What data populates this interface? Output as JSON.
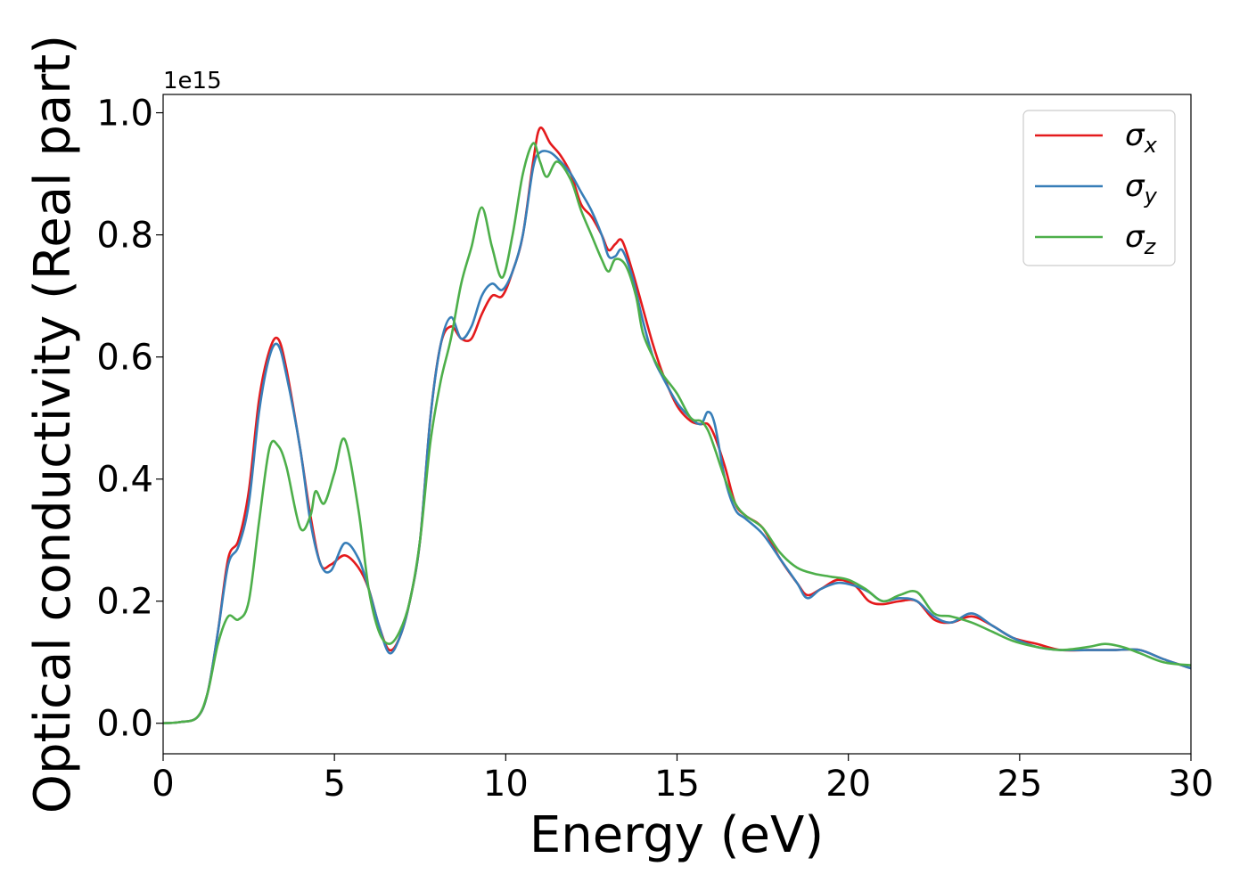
{
  "chart_data": {
    "type": "line",
    "title": "",
    "xlabel": "Energy (eV)",
    "ylabel": "Optical conductivity (Real part)",
    "y_offset_text": "1e15",
    "xlim": [
      0,
      30
    ],
    "ylim": [
      -0.05,
      1.03
    ],
    "y_scale_note": "values in units of 1e15",
    "xticks": [
      0,
      5,
      10,
      15,
      20,
      25,
      30
    ],
    "xtick_labels": [
      "0",
      "5",
      "10",
      "15",
      "20",
      "25",
      "30"
    ],
    "yticks": [
      0.0,
      0.2,
      0.4,
      0.6,
      0.8,
      1.0
    ],
    "ytick_labels": [
      "0.0",
      "0.2",
      "0.4",
      "0.6",
      "0.8",
      "1.0"
    ],
    "grid": false,
    "legend_position": "top-right",
    "series": [
      {
        "name": "σx",
        "symbol": "σ",
        "subscript": "x",
        "color": "#e41a1c",
        "x": [
          0,
          0.5,
          1.0,
          1.3,
          1.6,
          1.9,
          2.2,
          2.5,
          2.8,
          3.1,
          3.35,
          3.6,
          4.0,
          4.3,
          4.6,
          4.9,
          5.3,
          5.7,
          6.0,
          6.3,
          6.6,
          6.9,
          7.2,
          7.5,
          7.8,
          8.1,
          8.4,
          8.7,
          9.0,
          9.3,
          9.6,
          9.9,
          10.2,
          10.5,
          10.8,
          11.0,
          11.3,
          11.6,
          11.9,
          12.2,
          12.5,
          12.8,
          13.0,
          13.2,
          13.4,
          13.7,
          14.0,
          14.3,
          14.6,
          15.0,
          15.4,
          15.7,
          15.9,
          16.1,
          16.4,
          16.7,
          17.0,
          17.5,
          18.0,
          18.5,
          18.8,
          19.2,
          19.7,
          20.2,
          20.6,
          21.0,
          21.5,
          22.0,
          22.5,
          23.0,
          23.6,
          24.2,
          24.8,
          25.5,
          26.2,
          27.0,
          27.8,
          28.5,
          29.2,
          30.0
        ],
        "y": [
          0.0,
          0.002,
          0.01,
          0.05,
          0.15,
          0.27,
          0.3,
          0.38,
          0.53,
          0.61,
          0.63,
          0.58,
          0.45,
          0.34,
          0.26,
          0.26,
          0.275,
          0.255,
          0.22,
          0.16,
          0.12,
          0.14,
          0.2,
          0.3,
          0.5,
          0.62,
          0.65,
          0.63,
          0.63,
          0.67,
          0.7,
          0.7,
          0.74,
          0.8,
          0.92,
          0.975,
          0.95,
          0.93,
          0.9,
          0.85,
          0.83,
          0.8,
          0.775,
          0.785,
          0.79,
          0.74,
          0.68,
          0.62,
          0.57,
          0.52,
          0.495,
          0.49,
          0.49,
          0.47,
          0.42,
          0.36,
          0.34,
          0.32,
          0.27,
          0.23,
          0.21,
          0.22,
          0.235,
          0.225,
          0.2,
          0.195,
          0.2,
          0.2,
          0.17,
          0.165,
          0.175,
          0.16,
          0.14,
          0.13,
          0.12,
          0.12,
          0.12,
          0.12,
          0.105,
          0.09
        ]
      },
      {
        "name": "σy",
        "symbol": "σ",
        "subscript": "y",
        "color": "#377eb8",
        "x": [
          0,
          0.5,
          1.0,
          1.3,
          1.6,
          1.9,
          2.2,
          2.5,
          2.8,
          3.1,
          3.35,
          3.6,
          4.0,
          4.3,
          4.6,
          4.9,
          5.3,
          5.7,
          6.0,
          6.3,
          6.6,
          6.9,
          7.2,
          7.5,
          7.8,
          8.1,
          8.4,
          8.7,
          9.0,
          9.3,
          9.6,
          9.9,
          10.2,
          10.5,
          10.8,
          11.0,
          11.3,
          11.6,
          11.9,
          12.2,
          12.5,
          12.8,
          13.0,
          13.2,
          13.4,
          13.7,
          14.0,
          14.3,
          14.6,
          15.0,
          15.4,
          15.7,
          15.9,
          16.1,
          16.4,
          16.7,
          17.0,
          17.5,
          18.0,
          18.5,
          18.8,
          19.2,
          19.7,
          20.2,
          20.6,
          21.0,
          21.5,
          22.0,
          22.5,
          23.0,
          23.6,
          24.2,
          24.8,
          25.5,
          26.2,
          27.0,
          27.8,
          28.5,
          29.2,
          30.0
        ],
        "y": [
          0.0,
          0.002,
          0.01,
          0.05,
          0.15,
          0.26,
          0.29,
          0.36,
          0.51,
          0.6,
          0.62,
          0.57,
          0.45,
          0.33,
          0.26,
          0.25,
          0.295,
          0.27,
          0.22,
          0.16,
          0.115,
          0.14,
          0.2,
          0.3,
          0.5,
          0.62,
          0.665,
          0.63,
          0.65,
          0.7,
          0.72,
          0.71,
          0.74,
          0.8,
          0.91,
          0.935,
          0.935,
          0.92,
          0.9,
          0.87,
          0.84,
          0.8,
          0.765,
          0.765,
          0.775,
          0.73,
          0.66,
          0.6,
          0.565,
          0.525,
          0.5,
          0.49,
          0.51,
          0.49,
          0.4,
          0.35,
          0.335,
          0.31,
          0.27,
          0.23,
          0.205,
          0.22,
          0.23,
          0.225,
          0.215,
          0.2,
          0.205,
          0.2,
          0.175,
          0.165,
          0.18,
          0.16,
          0.14,
          0.125,
          0.12,
          0.12,
          0.12,
          0.12,
          0.105,
          0.09
        ]
      },
      {
        "name": "σz",
        "symbol": "σ",
        "subscript": "z",
        "color": "#4daf4a",
        "x": [
          0,
          0.5,
          1.0,
          1.3,
          1.6,
          1.9,
          2.2,
          2.5,
          2.8,
          3.1,
          3.35,
          3.6,
          4.0,
          4.3,
          4.45,
          4.7,
          5.0,
          5.3,
          5.7,
          6.0,
          6.3,
          6.6,
          6.9,
          7.2,
          7.5,
          7.8,
          8.1,
          8.4,
          8.7,
          9.0,
          9.3,
          9.6,
          9.9,
          10.2,
          10.5,
          10.8,
          11.0,
          11.2,
          11.5,
          11.9,
          12.2,
          12.5,
          12.8,
          13.0,
          13.2,
          13.5,
          13.8,
          14.0,
          14.3,
          14.6,
          15.0,
          15.4,
          15.7,
          15.9,
          16.1,
          16.4,
          16.7,
          17.0,
          17.5,
          18.0,
          18.5,
          19.0,
          19.5,
          20.0,
          20.5,
          21.0,
          21.5,
          22.0,
          22.5,
          23.0,
          23.6,
          24.2,
          24.8,
          25.5,
          26.2,
          27.0,
          27.5,
          28.0,
          28.5,
          29.2,
          30.0
        ],
        "y": [
          0.0,
          0.002,
          0.01,
          0.05,
          0.13,
          0.175,
          0.17,
          0.2,
          0.33,
          0.45,
          0.455,
          0.42,
          0.32,
          0.34,
          0.38,
          0.36,
          0.41,
          0.465,
          0.35,
          0.22,
          0.15,
          0.13,
          0.15,
          0.2,
          0.3,
          0.46,
          0.56,
          0.63,
          0.72,
          0.78,
          0.845,
          0.78,
          0.73,
          0.8,
          0.9,
          0.95,
          0.92,
          0.895,
          0.92,
          0.89,
          0.84,
          0.8,
          0.76,
          0.74,
          0.76,
          0.75,
          0.7,
          0.64,
          0.6,
          0.57,
          0.54,
          0.5,
          0.495,
          0.48,
          0.45,
          0.4,
          0.36,
          0.34,
          0.32,
          0.28,
          0.255,
          0.245,
          0.24,
          0.235,
          0.22,
          0.2,
          0.21,
          0.215,
          0.18,
          0.175,
          0.165,
          0.15,
          0.135,
          0.125,
          0.12,
          0.125,
          0.13,
          0.125,
          0.115,
          0.1,
          0.095
        ]
      }
    ]
  }
}
